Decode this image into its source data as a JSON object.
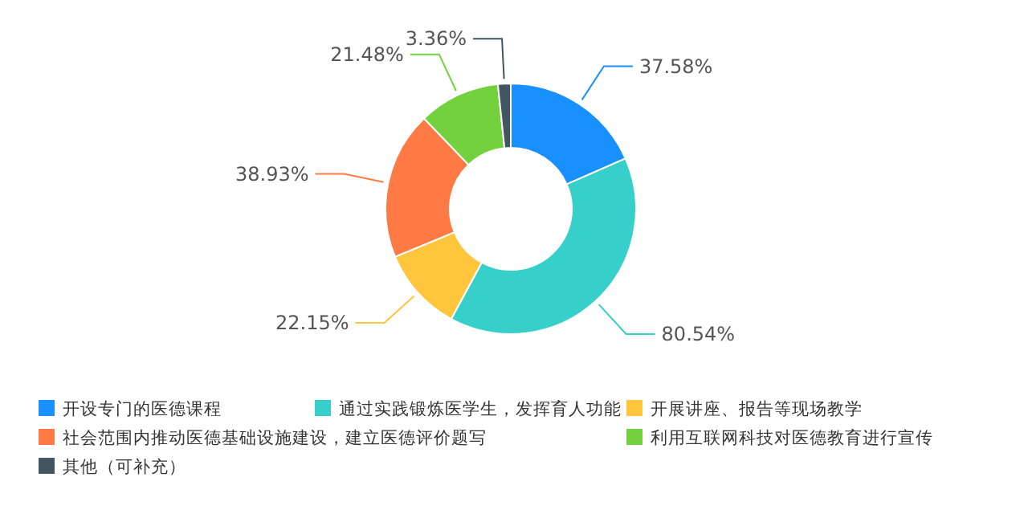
{
  "chart_data": {
    "type": "donut",
    "categories": [
      "开设专门的医德课程",
      "通过实践锻炼医学生，发挥育人功能",
      "开展讲座、报告等现场教学",
      "社会范围内推动医德基础设施建设，建立医德评价题写",
      "利用互联网科技对医德教育进行宣传",
      "其他（可补充）"
    ],
    "values": [
      37.58,
      80.54,
      22.15,
      38.93,
      21.48,
      3.36
    ],
    "value_labels": [
      "37.58%",
      "80.54%",
      "22.15%",
      "38.93%",
      "21.48%",
      "3.36%"
    ],
    "colors": [
      "#1890ff",
      "#36cfc9",
      "#ffc53d",
      "#ff7a45",
      "#73d13d",
      "#435560"
    ],
    "legend": "bottom"
  }
}
